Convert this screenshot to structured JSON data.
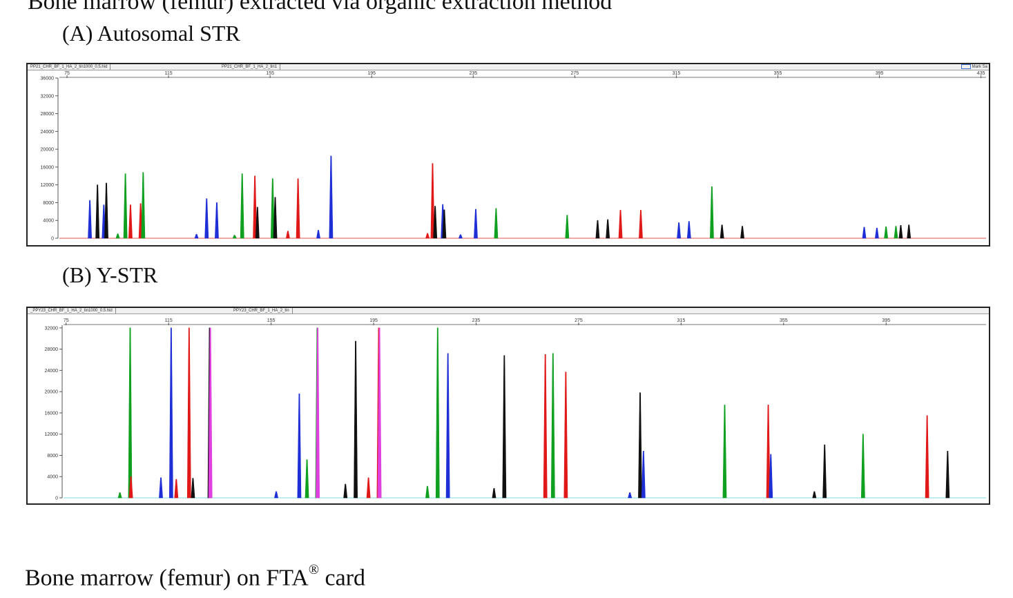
{
  "headings": {
    "top": "Bone marrow (femur) extracted via organic extraction method",
    "panel_a": "(A) Autosomal STR",
    "panel_b": "(B) Y-STR",
    "bottom_prefix": "Bone marrow (femur) on FTA",
    "bottom_sup": "®",
    "bottom_suffix": " card"
  },
  "colors": {
    "blue": "#1f2fd6",
    "green": "#10a020",
    "red": "#e01818",
    "black": "#111111",
    "magenta": "#e040e0"
  },
  "panel_a": {
    "tabs": [
      "PP21_CHR_BF_1_HA_2_tin1000_0.5.hid",
      "PP21_CHR_BF_1_HA_2_tin1"
    ],
    "right_label": "Mark Sa"
  },
  "panel_b": {
    "tabs": [
      "_PPY23_CHR_BF_1_HA_2_tin1000_0.5.hid",
      "PPY23_CHR_BF_1_HA_2_tin"
    ]
  },
  "chart_data": [
    {
      "type": "electropherogram",
      "title": "(A) Autosomal STR",
      "x_ticks": [
        75,
        115,
        155,
        195,
        235,
        275,
        315,
        355,
        395,
        435
      ],
      "xlim": [
        72,
        437
      ],
      "y_ticks": [
        0,
        4000,
        8000,
        12000,
        16000,
        20000,
        24000,
        28000,
        32000,
        36000
      ],
      "ylim": [
        0,
        36000
      ],
      "peaks": [
        {
          "x": 84,
          "y": 8500,
          "color": "blue"
        },
        {
          "x": 87,
          "y": 12000,
          "color": "black"
        },
        {
          "x": 89.5,
          "y": 7500,
          "color": "blue"
        },
        {
          "x": 90.5,
          "y": 12400,
          "color": "black"
        },
        {
          "x": 95,
          "y": 1000,
          "color": "green"
        },
        {
          "x": 98,
          "y": 14500,
          "color": "green"
        },
        {
          "x": 100,
          "y": 7500,
          "color": "red"
        },
        {
          "x": 104,
          "y": 7800,
          "color": "red"
        },
        {
          "x": 105,
          "y": 14800,
          "color": "green"
        },
        {
          "x": 126,
          "y": 900,
          "color": "blue"
        },
        {
          "x": 130,
          "y": 8900,
          "color": "blue"
        },
        {
          "x": 134,
          "y": 8000,
          "color": "blue"
        },
        {
          "x": 141,
          "y": 700,
          "color": "green"
        },
        {
          "x": 144,
          "y": 14500,
          "color": "green"
        },
        {
          "x": 149,
          "y": 14000,
          "color": "red"
        },
        {
          "x": 150,
          "y": 7000,
          "color": "black"
        },
        {
          "x": 156,
          "y": 13400,
          "color": "green"
        },
        {
          "x": 157,
          "y": 9200,
          "color": "black"
        },
        {
          "x": 162,
          "y": 1600,
          "color": "red"
        },
        {
          "x": 166,
          "y": 13400,
          "color": "red"
        },
        {
          "x": 174,
          "y": 1800,
          "color": "blue"
        },
        {
          "x": 179,
          "y": 18500,
          "color": "blue"
        },
        {
          "x": 217,
          "y": 1100,
          "color": "red"
        },
        {
          "x": 219,
          "y": 16800,
          "color": "red"
        },
        {
          "x": 220,
          "y": 7200,
          "color": "black"
        },
        {
          "x": 223,
          "y": 7600,
          "color": "blue"
        },
        {
          "x": 223.6,
          "y": 6400,
          "color": "black"
        },
        {
          "x": 230,
          "y": 800,
          "color": "blue"
        },
        {
          "x": 236,
          "y": 6500,
          "color": "blue"
        },
        {
          "x": 244,
          "y": 6700,
          "color": "green"
        },
        {
          "x": 272,
          "y": 5200,
          "color": "green"
        },
        {
          "x": 284,
          "y": 4000,
          "color": "black"
        },
        {
          "x": 288,
          "y": 4200,
          "color": "black"
        },
        {
          "x": 293,
          "y": 6300,
          "color": "red"
        },
        {
          "x": 301,
          "y": 6300,
          "color": "red"
        },
        {
          "x": 316,
          "y": 3500,
          "color": "blue"
        },
        {
          "x": 320,
          "y": 3800,
          "color": "blue"
        },
        {
          "x": 329,
          "y": 11600,
          "color": "green"
        },
        {
          "x": 333,
          "y": 3000,
          "color": "black"
        },
        {
          "x": 341,
          "y": 2700,
          "color": "black"
        },
        {
          "x": 389,
          "y": 2500,
          "color": "blue"
        },
        {
          "x": 394,
          "y": 2300,
          "color": "blue"
        },
        {
          "x": 397.6,
          "y": 2600,
          "color": "green"
        },
        {
          "x": 401.5,
          "y": 2700,
          "color": "green"
        },
        {
          "x": 403.4,
          "y": 2900,
          "color": "black"
        },
        {
          "x": 406.6,
          "y": 3000,
          "color": "black"
        }
      ]
    },
    {
      "type": "electropherogram",
      "title": "(B) Y-STR",
      "x_ticks": [
        75,
        115,
        155,
        195,
        235,
        275,
        315,
        355,
        395
      ],
      "xlim": [
        74,
        434
      ],
      "y_ticks": [
        0,
        4000,
        8000,
        12000,
        16000,
        20000,
        24000,
        28000,
        32000
      ],
      "ylim": [
        0,
        32500
      ],
      "peaks": [
        {
          "x": 96,
          "y": 1000,
          "color": "green"
        },
        {
          "x": 100,
          "y": 32000,
          "color": "green"
        },
        {
          "x": 100.3,
          "y": 4000,
          "color": "red"
        },
        {
          "x": 112,
          "y": 3800,
          "color": "blue"
        },
        {
          "x": 116,
          "y": 32000,
          "color": "blue"
        },
        {
          "x": 118,
          "y": 3500,
          "color": "red"
        },
        {
          "x": 123,
          "y": 32000,
          "color": "red"
        },
        {
          "x": 124.5,
          "y": 3700,
          "color": "black"
        },
        {
          "x": 131,
          "y": 32000,
          "color": "black"
        },
        {
          "x": 131.3,
          "y": 32000,
          "color": "magenta"
        },
        {
          "x": 157,
          "y": 1200,
          "color": "blue"
        },
        {
          "x": 166,
          "y": 19600,
          "color": "blue"
        },
        {
          "x": 169,
          "y": 7200,
          "color": "green"
        },
        {
          "x": 173,
          "y": 32000,
          "color": "green"
        },
        {
          "x": 173.2,
          "y": 32000,
          "color": "magenta"
        },
        {
          "x": 184,
          "y": 2600,
          "color": "black"
        },
        {
          "x": 188,
          "y": 29500,
          "color": "black"
        },
        {
          "x": 193,
          "y": 3800,
          "color": "red"
        },
        {
          "x": 197,
          "y": 32000,
          "color": "red"
        },
        {
          "x": 197.3,
          "y": 32000,
          "color": "magenta"
        },
        {
          "x": 216,
          "y": 2200,
          "color": "green"
        },
        {
          "x": 220,
          "y": 32000,
          "color": "green"
        },
        {
          "x": 224,
          "y": 27200,
          "color": "blue"
        },
        {
          "x": 242,
          "y": 1800,
          "color": "black"
        },
        {
          "x": 246,
          "y": 26800,
          "color": "black"
        },
        {
          "x": 262,
          "y": 27000,
          "color": "red"
        },
        {
          "x": 265,
          "y": 27200,
          "color": "green"
        },
        {
          "x": 270,
          "y": 23700,
          "color": "red"
        },
        {
          "x": 295,
          "y": 1000,
          "color": "blue"
        },
        {
          "x": 299,
          "y": 19800,
          "color": "black"
        },
        {
          "x": 300.3,
          "y": 8800,
          "color": "blue"
        },
        {
          "x": 332,
          "y": 17500,
          "color": "green"
        },
        {
          "x": 349,
          "y": 17500,
          "color": "red"
        },
        {
          "x": 350,
          "y": 8200,
          "color": "blue"
        },
        {
          "x": 367,
          "y": 1200,
          "color": "black"
        },
        {
          "x": 371,
          "y": 10000,
          "color": "black"
        },
        {
          "x": 386,
          "y": 12000,
          "color": "green"
        },
        {
          "x": 411,
          "y": 15500,
          "color": "red"
        },
        {
          "x": 419,
          "y": 8800,
          "color": "black"
        }
      ]
    }
  ]
}
